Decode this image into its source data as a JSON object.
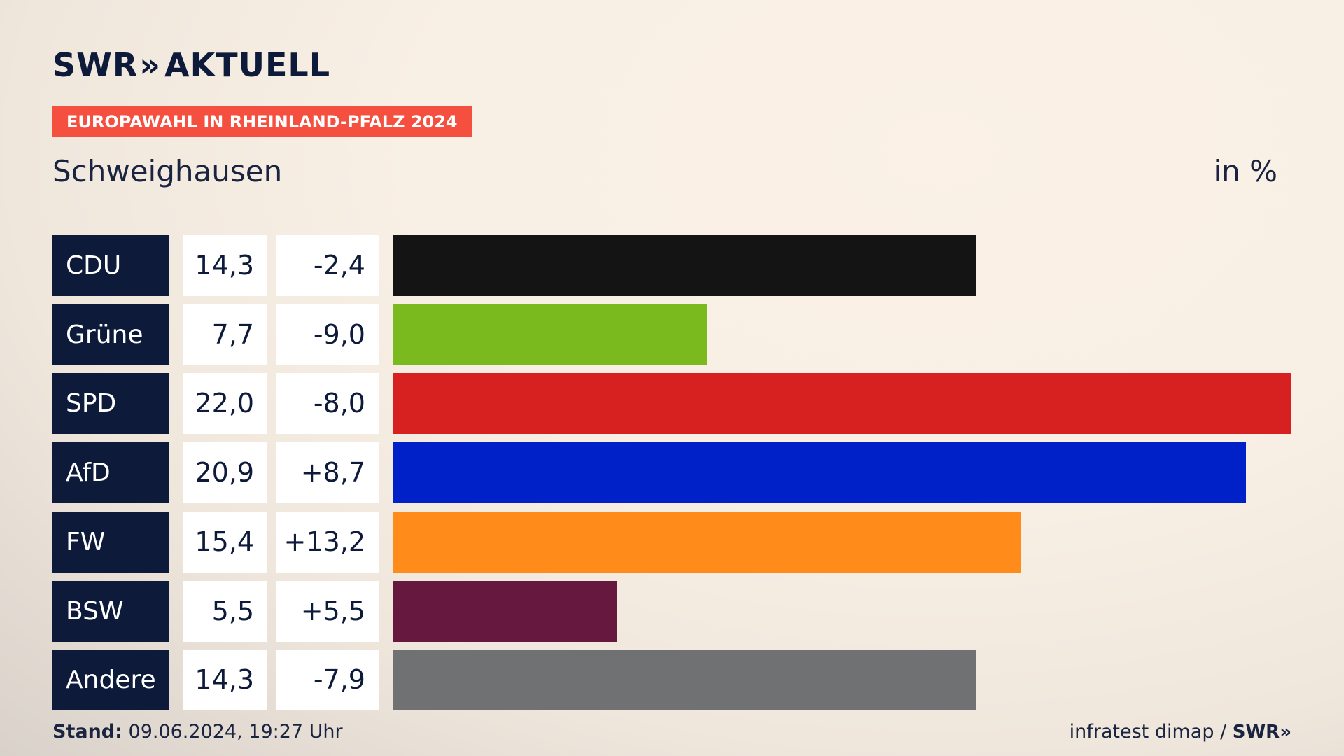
{
  "header": {
    "logo_brand": "SWR",
    "logo_arrows": "»",
    "logo_title": "AKTUELL",
    "tag": "EUROPAWAHL IN RHEINLAND-PFALZ 2024",
    "place": "Schweighausen",
    "unit": "in %"
  },
  "footer": {
    "stand_label": "Stand:",
    "stand_value": "09.06.2024, 19:27 Uhr",
    "source": "infratest dimap /",
    "source_brand": "SWR»"
  },
  "chart_data": {
    "type": "bar",
    "orientation": "horizontal",
    "title": "Schweighausen",
    "unit": "in %",
    "xlim": [
      0,
      22.0
    ],
    "categories": [
      "CDU",
      "Grüne",
      "SPD",
      "AfD",
      "FW",
      "BSW",
      "Andere"
    ],
    "values": [
      14.3,
      7.7,
      22.0,
      20.9,
      15.4,
      5.5,
      14.3
    ],
    "value_labels": [
      "14,3",
      "7,7",
      "22,0",
      "20,9",
      "15,4",
      "5,5",
      "14,3"
    ],
    "change_labels": [
      "-2,4",
      "-9,0",
      "-8,0",
      "+8,7",
      "+13,2",
      "+5,5",
      "-7,9"
    ],
    "colors": [
      "#141414",
      "#7aba1e",
      "#d72121",
      "#0020c8",
      "#ff8c1a",
      "#66183f",
      "#707173"
    ]
  }
}
